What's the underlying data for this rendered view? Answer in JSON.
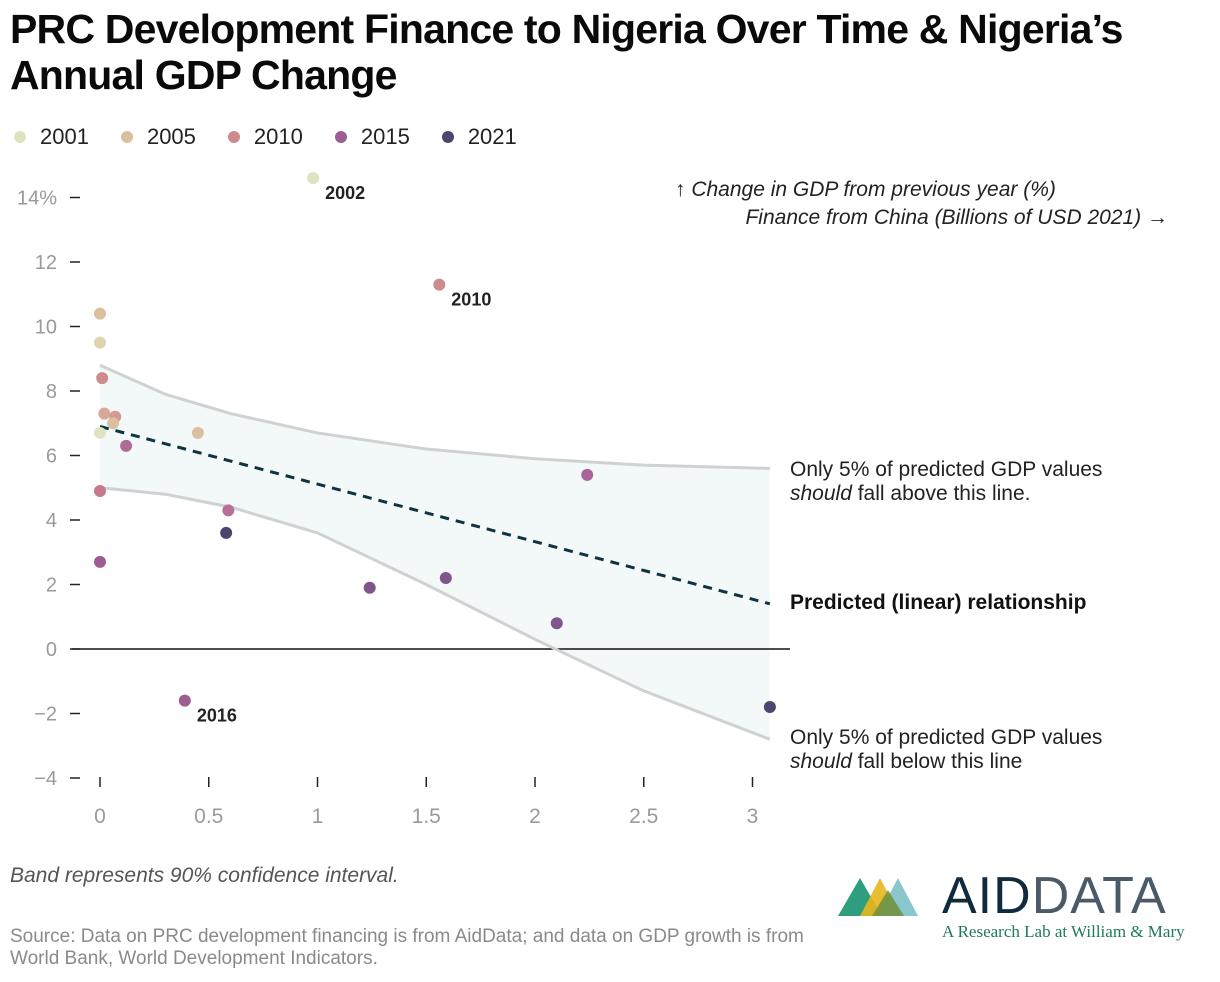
{
  "title": "PRC Development Finance to Nigeria Over Time & Nigeria’s Annual GDP Change",
  "legend": [
    {
      "label": "2001",
      "color": "#dfe3c0"
    },
    {
      "label": "2005",
      "color": "#dcbf9f"
    },
    {
      "label": "2010",
      "color": "#cf8a8e"
    },
    {
      "label": "2015",
      "color": "#9d5d93"
    },
    {
      "label": "2021",
      "color": "#4a466e"
    }
  ],
  "footnote": "Band represents 90% confidence interval.",
  "source": "Source: Data on PRC development financing is from AidData; and data on GDP growth is from World Bank, World Development Indicators.",
  "logo": {
    "word_a": "AID",
    "word_b": "DATA",
    "tagline": "A Research Lab at William & Mary"
  },
  "chart_data": {
    "type": "scatter",
    "ylabel": "↑ Change in GDP from previous year (%)",
    "xlabel": "Finance from China (Billions of USD 2021) →",
    "xlim": [
      0,
      3.1
    ],
    "ylim": [
      -4,
      14.5
    ],
    "x_ticks": [
      0,
      0.5,
      1,
      1.5,
      2,
      2.5,
      3
    ],
    "x_tick_labels": [
      "0",
      "0.5",
      "1",
      "1.5",
      "2",
      "2.5",
      "3"
    ],
    "y_ticks": [
      -4,
      -2,
      0,
      2,
      4,
      6,
      8,
      10,
      12,
      14
    ],
    "y_tick_labels": [
      "−4",
      "−2",
      "0",
      "2",
      "4",
      "6",
      "8",
      "10",
      "12",
      "14%"
    ],
    "grid": false,
    "zero_line": true,
    "points": [
      {
        "x": 0.98,
        "y": 14.6,
        "color": "#dfe3c0",
        "label": "2002"
      },
      {
        "x": 1.56,
        "y": 11.3,
        "color": "#cf8a8e",
        "label": "2010"
      },
      {
        "x": 0.39,
        "y": -1.6,
        "color": "#9d5d93",
        "label": "2016"
      },
      {
        "x": 0.0,
        "y": 10.4,
        "color": "#dcbf9f"
      },
      {
        "x": 0.0,
        "y": 9.5,
        "color": "#dfd4ae"
      },
      {
        "x": 0.01,
        "y": 8.4,
        "color": "#cf8a8e"
      },
      {
        "x": 0.02,
        "y": 7.3,
        "color": "#d8a896"
      },
      {
        "x": 0.07,
        "y": 7.2,
        "color": "#d39a93"
      },
      {
        "x": 0.06,
        "y": 7.0,
        "color": "#dcbf9f"
      },
      {
        "x": 0.0,
        "y": 6.7,
        "color": "#dfe3c0"
      },
      {
        "x": 0.45,
        "y": 6.7,
        "color": "#dcbf9f"
      },
      {
        "x": 0.12,
        "y": 6.3,
        "color": "#b06b95"
      },
      {
        "x": 0.0,
        "y": 4.9,
        "color": "#c47a8c"
      },
      {
        "x": 0.59,
        "y": 4.3,
        "color": "#b8709a"
      },
      {
        "x": 0.58,
        "y": 3.6,
        "color": "#4a466e"
      },
      {
        "x": 0.0,
        "y": 2.7,
        "color": "#9d5d93"
      },
      {
        "x": 1.24,
        "y": 1.9,
        "color": "#80558b"
      },
      {
        "x": 1.59,
        "y": 2.2,
        "color": "#80558b"
      },
      {
        "x": 2.1,
        "y": 0.8,
        "color": "#80558b"
      },
      {
        "x": 2.24,
        "y": 5.4,
        "color": "#a9659a"
      },
      {
        "x": 3.08,
        "y": -1.8,
        "color": "#4a466e"
      }
    ],
    "trend": {
      "label": "Predicted (linear) relationship",
      "x": [
        0,
        3.08
      ],
      "y": [
        6.9,
        1.4
      ],
      "color": "#0d3440"
    },
    "upper_band": {
      "label_a": "Only 5% of predicted GDP values",
      "label_em": "should",
      "label_b": " fall above this line.",
      "x": [
        0,
        0.3,
        0.6,
        1,
        1.5,
        2,
        2.5,
        3.08
      ],
      "y": [
        8.8,
        7.9,
        7.3,
        6.7,
        6.2,
        5.9,
        5.7,
        5.6
      ]
    },
    "lower_band": {
      "label_a": "Only 5% of predicted GDP values",
      "label_em": "should",
      "label_b": " fall below this line",
      "x": [
        0,
        0.3,
        0.6,
        1,
        1.5,
        2,
        2.5,
        3.08
      ],
      "y": [
        5.0,
        4.8,
        4.4,
        3.6,
        2.0,
        0.3,
        -1.3,
        -2.8
      ]
    }
  }
}
